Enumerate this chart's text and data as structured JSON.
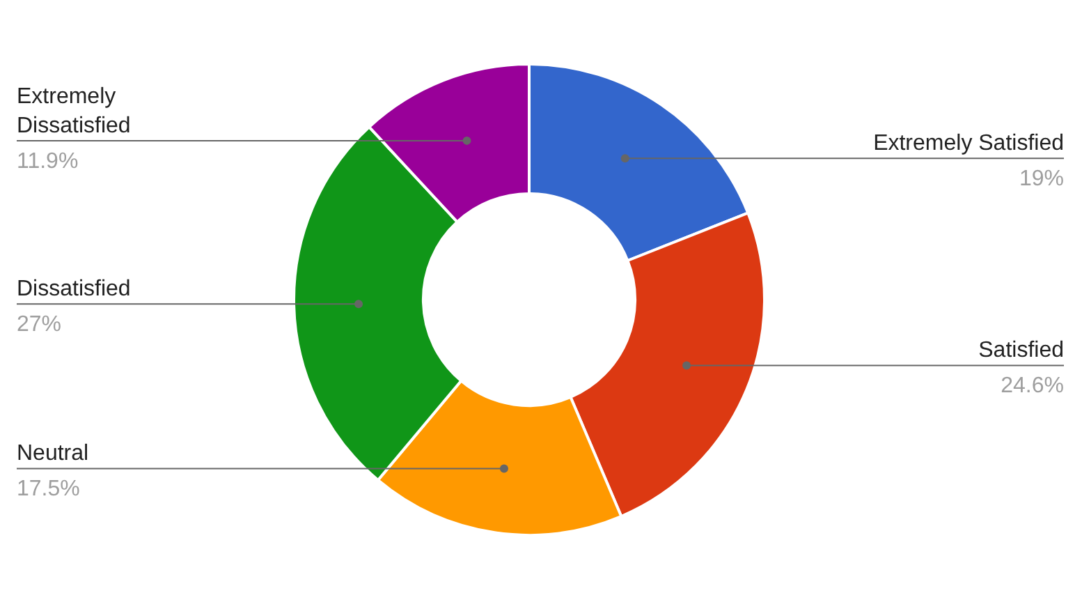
{
  "chart_data": {
    "type": "donut",
    "categories": [
      "Extremely Satisfied",
      "Satisfied",
      "Neutral",
      "Dissatisfied",
      "Extremely Dissatisfied"
    ],
    "values": [
      19,
      24.6,
      17.5,
      27,
      11.9
    ],
    "colors": [
      "#3366cc",
      "#dc3912",
      "#ff9900",
      "#109618",
      "#990099"
    ],
    "value_labels": [
      "19%",
      "24.6%",
      "17.5%",
      "27%",
      "11.9%"
    ],
    "legend": false
  }
}
